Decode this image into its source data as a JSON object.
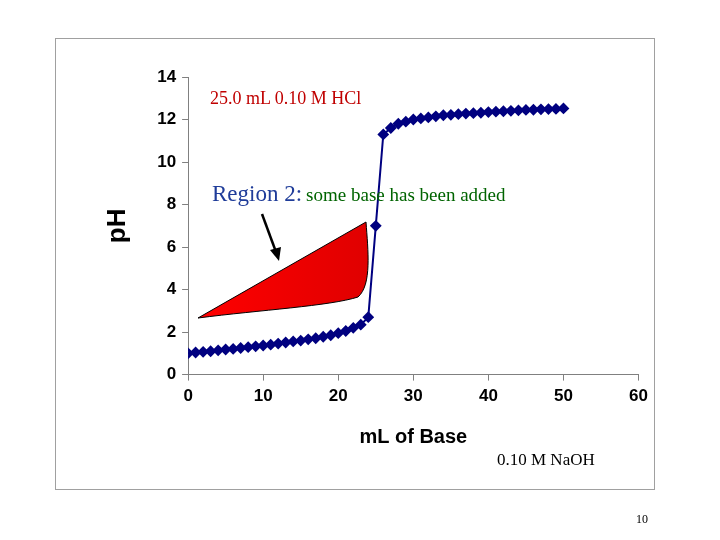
{
  "chart_data": {
    "type": "line",
    "title": "25.0 mL 0.10 M HCl",
    "annotations": [
      "Region 2:",
      "some base has been added",
      "0.10 M NaOH"
    ],
    "x_label": "mL of Base",
    "y_label": "pH",
    "x": [
      0,
      1,
      2,
      3,
      4,
      5,
      6,
      7,
      8,
      9,
      10,
      11,
      12,
      13,
      14,
      15,
      16,
      17,
      18,
      19,
      20,
      21,
      22,
      23,
      24,
      25,
      26,
      27,
      28,
      29,
      30,
      31,
      32,
      33,
      34,
      35,
      36,
      37,
      38,
      39,
      40,
      41,
      42,
      43,
      44,
      45,
      46,
      47,
      48,
      49,
      50
    ],
    "values": [
      1.0,
      1.04,
      1.07,
      1.1,
      1.14,
      1.18,
      1.21,
      1.25,
      1.29,
      1.33,
      1.37,
      1.41,
      1.46,
      1.51,
      1.56,
      1.6,
      1.66,
      1.71,
      1.78,
      1.85,
      1.95,
      2.05,
      2.2,
      2.35,
      2.7,
      7.0,
      11.3,
      11.6,
      11.8,
      11.9,
      12.0,
      12.05,
      12.1,
      12.15,
      12.2,
      12.22,
      12.25,
      12.28,
      12.3,
      12.32,
      12.35,
      12.37,
      12.39,
      12.41,
      12.43,
      12.45,
      12.46,
      12.48,
      12.49,
      12.5,
      12.52
    ],
    "color": "#000080",
    "marker": "diamond",
    "line_style": "solid",
    "xlim": [
      0,
      60
    ],
    "xticks": [
      0,
      10,
      20,
      30,
      40,
      50,
      60
    ],
    "ylim": [
      0,
      14
    ],
    "yticks": [
      0,
      2,
      4,
      6,
      8,
      10,
      12,
      14
    ],
    "grid": false
  },
  "slide_number": 10
}
